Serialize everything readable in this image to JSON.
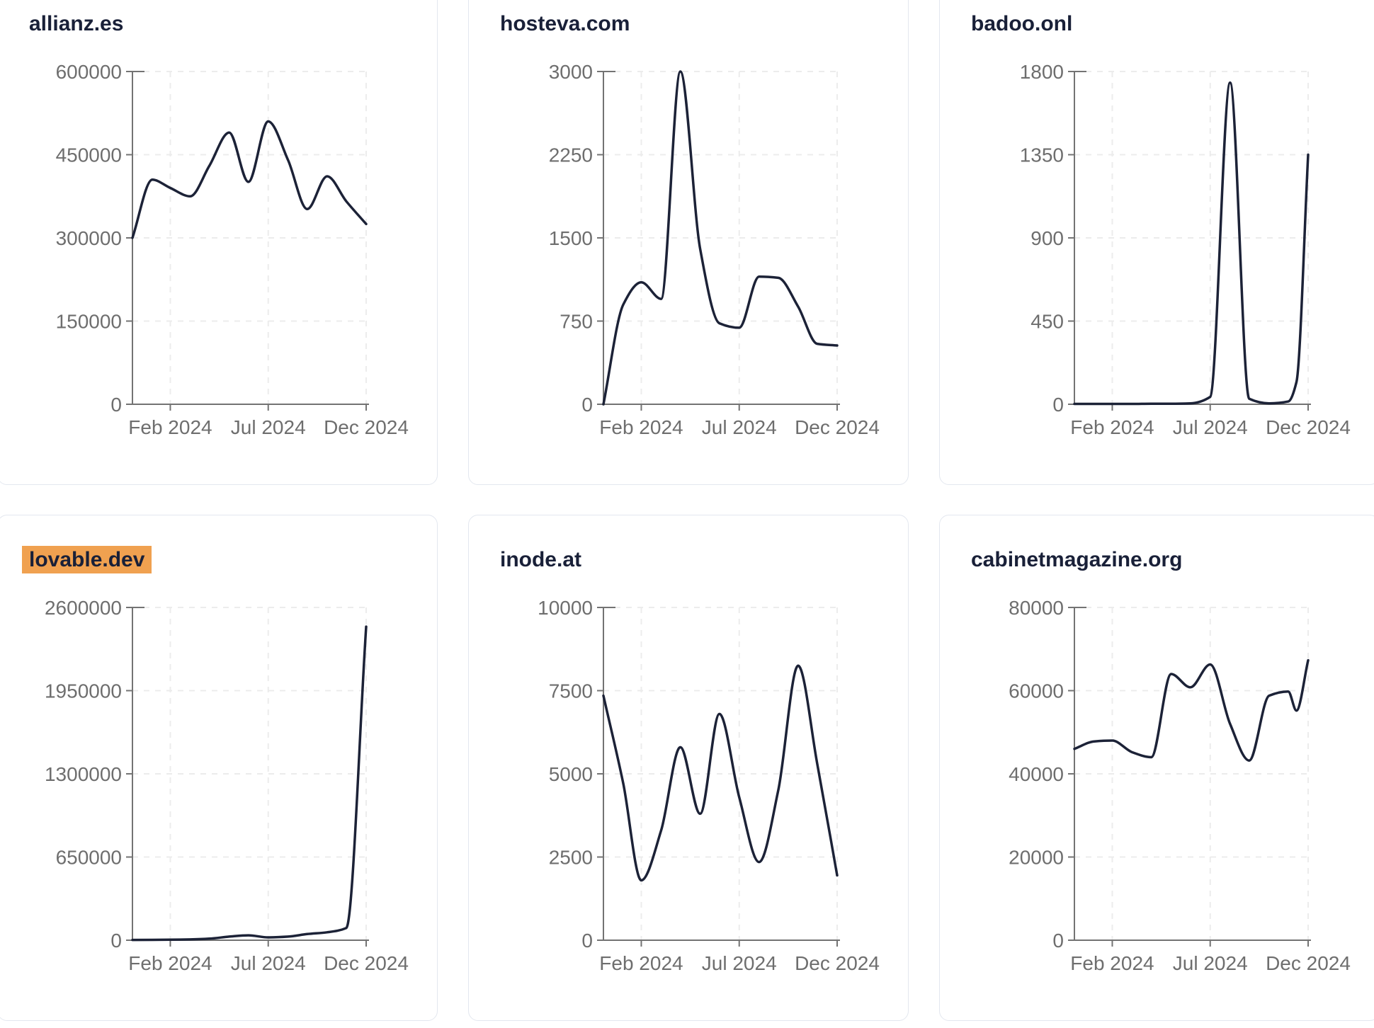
{
  "page": {
    "background": "#ffffff",
    "line_color": "#1c2237",
    "title_color": "#192038",
    "axis_color": "#737373",
    "tick_label_color": "#6e6e6e",
    "gridline_color": "#ececec",
    "card_border_color": "#e3e7ef",
    "highlight_color": "#f0a150"
  },
  "chart_data": [
    {
      "type": "line",
      "title": "allianz.es",
      "highlighted": false,
      "ylim": [
        0,
        600000
      ],
      "y_ticks": [
        0,
        150000,
        300000,
        450000,
        600000
      ],
      "x_ticks": {
        "labels": [
          "Feb 2024",
          "Jul 2024",
          "Dec 2024"
        ],
        "fractions": [
          0.162,
          0.581,
          1.0
        ]
      },
      "x_description": "Jan-Dec 2024, x given as fraction of axis",
      "grid": "dashed",
      "legend": "none",
      "points": [
        [
          0,
          300000
        ],
        [
          0.085,
          405000
        ],
        [
          0.162,
          390000
        ],
        [
          0.247,
          375000
        ],
        [
          0.329,
          430000
        ],
        [
          0.414,
          490000
        ],
        [
          0.496,
          401000
        ],
        [
          0.581,
          510000
        ],
        [
          0.666,
          440000
        ],
        [
          0.748,
          352000
        ],
        [
          0.833,
          411000
        ],
        [
          0.915,
          366000
        ],
        [
          1.0,
          325000
        ]
      ]
    },
    {
      "type": "line",
      "title": "hosteva.com",
      "highlighted": false,
      "ylim": [
        0,
        3000
      ],
      "y_ticks": [
        0,
        750,
        1500,
        2250,
        3000
      ],
      "x_ticks": {
        "labels": [
          "Feb 2024",
          "Jul 2024",
          "Dec 2024"
        ],
        "fractions": [
          0.162,
          0.581,
          1.0
        ]
      },
      "x_description": "Jan-Dec 2024, x given as fraction of axis",
      "grid": "dashed",
      "legend": "none",
      "points": [
        [
          0,
          0
        ],
        [
          0.085,
          900
        ],
        [
          0.162,
          1100
        ],
        [
          0.247,
          950
        ],
        [
          0.329,
          3000
        ],
        [
          0.414,
          1400
        ],
        [
          0.496,
          730
        ],
        [
          0.581,
          690
        ],
        [
          0.666,
          1150
        ],
        [
          0.748,
          1140
        ],
        [
          0.833,
          880
        ],
        [
          0.915,
          545
        ],
        [
          1.0,
          530
        ]
      ]
    },
    {
      "type": "line",
      "title": "badoo.onl",
      "highlighted": false,
      "ylim": [
        0,
        1800
      ],
      "y_ticks": [
        0,
        450,
        900,
        1350,
        1800
      ],
      "x_ticks": {
        "labels": [
          "Feb 2024",
          "Jul 2024",
          "Dec 2024"
        ],
        "fractions": [
          0.162,
          0.581,
          1.0
        ]
      },
      "x_description": "Jan-Dec 2024, x given as fraction of axis",
      "grid": "dashed",
      "legend": "none",
      "points": [
        [
          0,
          2
        ],
        [
          0.085,
          2
        ],
        [
          0.162,
          2
        ],
        [
          0.247,
          2
        ],
        [
          0.329,
          3
        ],
        [
          0.414,
          3
        ],
        [
          0.496,
          5
        ],
        [
          0.581,
          40
        ],
        [
          0.666,
          1740
        ],
        [
          0.748,
          30
        ],
        [
          0.833,
          5
        ],
        [
          0.915,
          15
        ],
        [
          0.95,
          120
        ],
        [
          1.0,
          1350
        ]
      ]
    },
    {
      "type": "line",
      "title": "lovable.dev",
      "highlighted": true,
      "ylim": [
        0,
        2600000
      ],
      "y_ticks": [
        0,
        650000,
        1300000,
        1950000,
        2600000
      ],
      "x_ticks": {
        "labels": [
          "Feb 2024",
          "Jul 2024",
          "Dec 2024"
        ],
        "fractions": [
          0.162,
          0.581,
          1.0
        ]
      },
      "x_description": "Jan-Dec 2024, x given as fraction of axis",
      "grid": "dashed",
      "legend": "none",
      "points": [
        [
          0,
          2000
        ],
        [
          0.085,
          3000
        ],
        [
          0.162,
          4000
        ],
        [
          0.247,
          6000
        ],
        [
          0.329,
          12000
        ],
        [
          0.414,
          28000
        ],
        [
          0.496,
          38000
        ],
        [
          0.581,
          22000
        ],
        [
          0.666,
          28000
        ],
        [
          0.748,
          48000
        ],
        [
          0.833,
          62000
        ],
        [
          0.915,
          95000
        ],
        [
          1.0,
          2450000
        ]
      ]
    },
    {
      "type": "line",
      "title": "inode.at",
      "highlighted": false,
      "ylim": [
        0,
        10000
      ],
      "y_ticks": [
        0,
        2500,
        5000,
        7500,
        10000
      ],
      "x_ticks": {
        "labels": [
          "Feb 2024",
          "Jul 2024",
          "Dec 2024"
        ],
        "fractions": [
          0.162,
          0.581,
          1.0
        ]
      },
      "x_description": "Jan-Dec 2024, x given as fraction of axis",
      "grid": "dashed",
      "legend": "none",
      "points": [
        [
          0,
          7350
        ],
        [
          0.085,
          4700
        ],
        [
          0.162,
          1800
        ],
        [
          0.247,
          3300
        ],
        [
          0.329,
          5800
        ],
        [
          0.414,
          3800
        ],
        [
          0.496,
          6800
        ],
        [
          0.581,
          4300
        ],
        [
          0.666,
          2350
        ],
        [
          0.748,
          4500
        ],
        [
          0.833,
          8250
        ],
        [
          0.915,
          5300
        ],
        [
          1.0,
          1950
        ]
      ]
    },
    {
      "type": "line",
      "title": "cabinetmagazine.org",
      "highlighted": false,
      "ylim": [
        0,
        80000
      ],
      "y_ticks": [
        0,
        20000,
        40000,
        60000,
        80000
      ],
      "x_ticks": {
        "labels": [
          "Feb 2024",
          "Jul 2024",
          "Dec 2024"
        ],
        "fractions": [
          0.162,
          0.581,
          1.0
        ]
      },
      "x_description": "Jan-Dec 2024, x given as fraction of axis",
      "grid": "dashed",
      "legend": "none",
      "points": [
        [
          0,
          46000
        ],
        [
          0.085,
          47800
        ],
        [
          0.162,
          48000
        ],
        [
          0.247,
          45200
        ],
        [
          0.329,
          44000
        ],
        [
          0.414,
          64000
        ],
        [
          0.496,
          60800
        ],
        [
          0.581,
          66300
        ],
        [
          0.666,
          52000
        ],
        [
          0.748,
          43200
        ],
        [
          0.833,
          58800
        ],
        [
          0.915,
          59800
        ],
        [
          0.95,
          55200
        ],
        [
          1.0,
          67300
        ]
      ]
    }
  ]
}
